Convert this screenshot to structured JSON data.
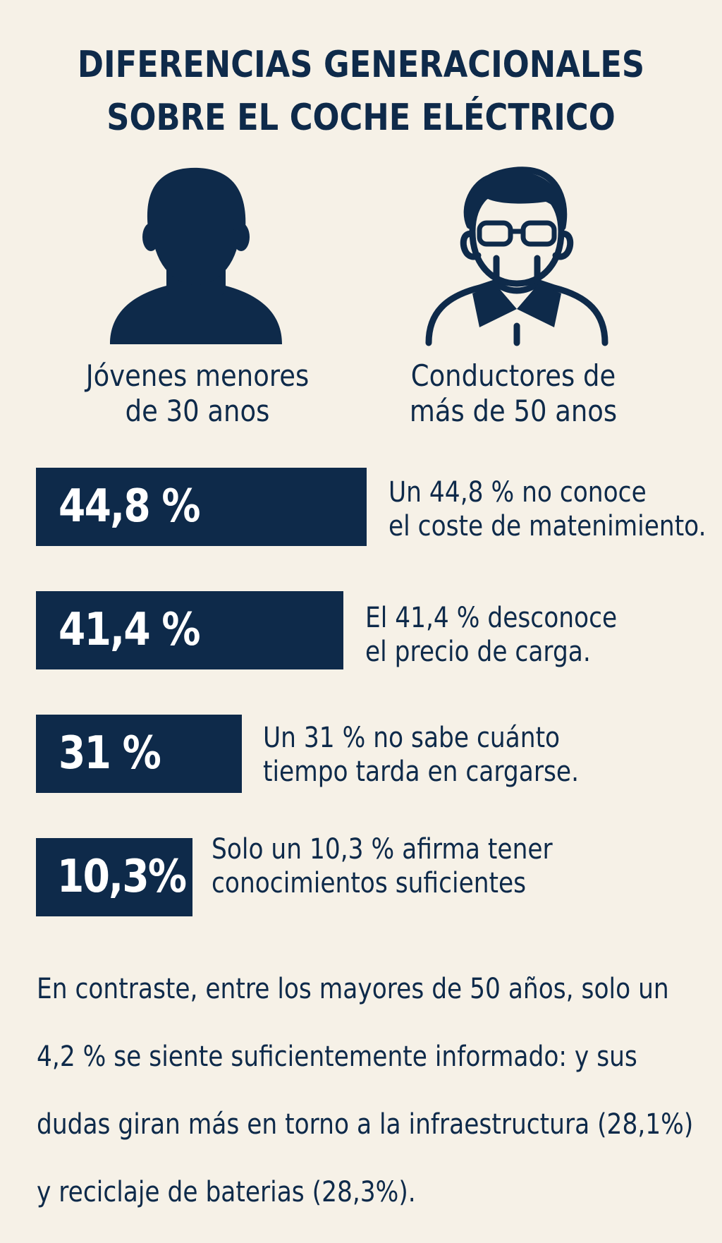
{
  "title": {
    "line1": "DIFERENCIAS GENERACIONALES",
    "line2": "SOBRE EL COCHE ELÉCTRICO"
  },
  "groups": {
    "young": {
      "icon": "young-person-icon",
      "line1": "Jóvenes menores",
      "line2": "de 30 anos"
    },
    "old": {
      "icon": "older-person-with-glasses-icon",
      "line1": "Conductores de",
      "line2": "más de 50 anos"
    }
  },
  "stats": [
    {
      "value": "44,8 %",
      "fraction": 0.448,
      "line1": "Un 44,8 % no conoce",
      "line2": "el coste de matenimiento."
    },
    {
      "value": "41,4 %",
      "fraction": 0.414,
      "line1": "El 41,4 % desconoce",
      "line2": "el precio de carga."
    },
    {
      "value": "31 %",
      "fraction": 0.31,
      "line1": "Un 31 % no sabe cuánto",
      "line2": "tiempo tarda en cargarse."
    },
    {
      "value": "10,3%",
      "fraction": 0.103,
      "line1": "Solo un 10,3 % afirma tener",
      "line2": "conocimientos suficientes"
    }
  ],
  "footer": {
    "line1": "En contraste, entre los mayores de 50 años, solo un",
    "line2": "4,2 % se siente suficientemente informado: y sus",
    "line3": "dudas giran más en torno a la infraestructura (28,1%)",
    "line4": "y reciclaje de baterias (28,3%)."
  },
  "colors": {
    "background": "#f6f1e7",
    "navy": "#0e2a4a",
    "white": "#ffffff"
  }
}
